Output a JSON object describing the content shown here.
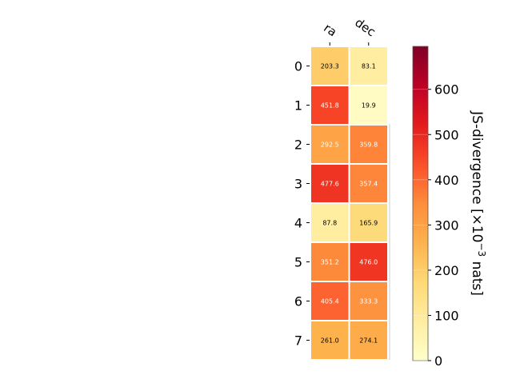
{
  "chart_data": {
    "type": "heatmap",
    "columns": [
      "ra",
      "dec"
    ],
    "rows": [
      "0",
      "1",
      "2",
      "3",
      "4",
      "5",
      "6",
      "7"
    ],
    "values": [
      [
        203.3,
        83.1
      ],
      [
        451.8,
        19.9
      ],
      [
        292.5,
        359.8
      ],
      [
        477.6,
        357.4
      ],
      [
        87.8,
        165.9
      ],
      [
        351.2,
        476.0
      ],
      [
        405.4,
        333.3
      ],
      [
        261.0,
        274.1
      ]
    ],
    "value_labels": [
      [
        "203.3",
        "83.1"
      ],
      [
        "451.8",
        "19.9"
      ],
      [
        "292.5",
        "359.8"
      ],
      [
        "477.6",
        "357.4"
      ],
      [
        "87.8",
        "165.9"
      ],
      [
        "351.2",
        "476.0"
      ],
      [
        "405.4",
        "333.3"
      ],
      [
        "261.0",
        "274.1"
      ]
    ],
    "colormap": "YlOrRd",
    "color_range": [
      0,
      695
    ],
    "colorbar": {
      "label_main": "JS-divergence [×10",
      "label_exp": "−3",
      "label_tail": " nats]",
      "ticks": [
        0,
        100,
        200,
        300,
        400,
        500,
        600
      ],
      "tick_labels": [
        "0",
        "100",
        "200",
        "300",
        "400",
        "500",
        "600"
      ]
    }
  }
}
